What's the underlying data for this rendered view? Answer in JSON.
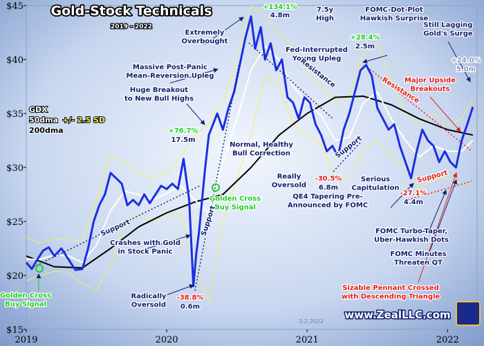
{
  "chart_data": {
    "type": "line",
    "title": "Gold-Stock Technicals",
    "subtitle": "2019 - 2022",
    "xlim": [
      2019,
      2022.21
    ],
    "xticks": [
      2019,
      2020,
      2021,
      2022
    ],
    "ylim": [
      15,
      45
    ],
    "yticks": [
      {
        "value": 15,
        "label": "$15"
      },
      {
        "value": 20,
        "label": "$20"
      },
      {
        "value": 25,
        "label": "$25"
      },
      {
        "value": 30,
        "label": "$30"
      },
      {
        "value": 35,
        "label": "$35"
      },
      {
        "value": 40,
        "label": "$40"
      },
      {
        "value": 45,
        "label": "$45"
      }
    ],
    "series": [
      {
        "name": "GDX",
        "color": "#1a2ee0",
        "x": [
          2019.0,
          2019.04,
          2019.08,
          2019.12,
          2019.16,
          2019.2,
          2019.25,
          2019.3,
          2019.35,
          2019.4,
          2019.44,
          2019.48,
          2019.52,
          2019.56,
          2019.6,
          2019.64,
          2019.68,
          2019.72,
          2019.76,
          2019.8,
          2019.84,
          2019.88,
          2019.92,
          2019.96,
          2020.0,
          2020.04,
          2020.08,
          2020.12,
          2020.16,
          2020.19,
          2020.21,
          2020.23,
          2020.27,
          2020.3,
          2020.33,
          2020.36,
          2020.4,
          2020.44,
          2020.48,
          2020.52,
          2020.56,
          2020.6,
          2020.63,
          2020.67,
          2020.7,
          2020.74,
          2020.78,
          2020.82,
          2020.86,
          2020.9,
          2020.94,
          2020.98,
          2021.02,
          2021.06,
          2021.1,
          2021.14,
          2021.18,
          2021.22,
          2021.26,
          2021.3,
          2021.34,
          2021.38,
          2021.42,
          2021.46,
          2021.5,
          2021.54,
          2021.58,
          2021.62,
          2021.66,
          2021.7,
          2021.74,
          2021.78,
          2021.82,
          2021.86,
          2021.9,
          2021.94,
          2021.98,
          2022.02,
          2022.06,
          2022.1,
          2022.14,
          2022.18
        ],
        "values": [
          21.2,
          20.6,
          21.5,
          22.3,
          22.6,
          21.8,
          22.5,
          21.5,
          20.5,
          20.6,
          22.5,
          25,
          26.5,
          27.5,
          29.5,
          29,
          28.5,
          26.5,
          27,
          26.5,
          27.5,
          26.7,
          27.5,
          28.3,
          28,
          28.5,
          28,
          30.8,
          27,
          19.0,
          22,
          24,
          29.5,
          33,
          34,
          35,
          33.5,
          35.5,
          37,
          39.5,
          42,
          44,
          41,
          43,
          40,
          41.5,
          39,
          40,
          36.5,
          36,
          34.5,
          36.5,
          36,
          34,
          33,
          31.5,
          32,
          31,
          33.5,
          35,
          37,
          39,
          39.5,
          38.5,
          35.5,
          34.5,
          33.5,
          34,
          32,
          30.5,
          29,
          31.5,
          33.5,
          32.5,
          32,
          30.5,
          31.5,
          30.5,
          30,
          32.5,
          34,
          35.6
        ]
      },
      {
        "name": "50dma",
        "color": "#ffffff",
        "x": [
          2019.0,
          2019.1,
          2019.2,
          2019.3,
          2019.4,
          2019.5,
          2019.6,
          2019.7,
          2019.8,
          2019.9,
          2020.0,
          2020.1,
          2020.2,
          2020.3,
          2020.4,
          2020.5,
          2020.6,
          2020.7,
          2020.8,
          2020.9,
          2021.0,
          2021.1,
          2021.2,
          2021.3,
          2021.4,
          2021.5,
          2021.6,
          2021.7,
          2021.8,
          2021.9,
          2022.0,
          2022.1,
          2022.18
        ],
        "values": [
          21.5,
          21.5,
          21.9,
          21.8,
          21.2,
          22.8,
          26,
          27.8,
          27.5,
          27,
          27.6,
          28.3,
          27,
          25.8,
          30.5,
          34.5,
          39,
          41.2,
          40,
          37.5,
          36,
          34.8,
          32.5,
          32.8,
          36,
          37,
          34.5,
          32.5,
          31,
          32,
          31.5,
          31.5,
          32.5
        ]
      },
      {
        "name": "200dma",
        "color": "#000000",
        "x": [
          2019.0,
          2019.2,
          2019.4,
          2019.6,
          2019.8,
          2020.0,
          2020.2,
          2020.4,
          2020.6,
          2020.8,
          2021.0,
          2021.2,
          2021.4,
          2021.6,
          2021.8,
          2022.0,
          2022.18
        ],
        "values": [
          21.8,
          20.8,
          20.7,
          22.5,
          24.5,
          25.8,
          26.8,
          27.5,
          30,
          33,
          35,
          36.5,
          36.6,
          35.8,
          34.5,
          33.5,
          33
        ]
      }
    ],
    "bands": {
      "name": "+/- 2.5 SD",
      "color": "#f0f060",
      "x": [
        2019.0,
        2019.1,
        2019.2,
        2019.3,
        2019.4,
        2019.5,
        2019.6,
        2019.7,
        2019.8,
        2019.9,
        2020.0,
        2020.1,
        2020.2,
        2020.3,
        2020.4,
        2020.5,
        2020.6,
        2020.7,
        2020.8,
        2020.9,
        2021.0,
        2021.1,
        2021.2,
        2021.3,
        2021.4,
        2021.5,
        2021.6,
        2021.7,
        2021.8,
        2021.9,
        2022.0,
        2022.1,
        2022.18
      ],
      "upper": [
        23.5,
        23,
        23.4,
        23.3,
        23.2,
        27,
        31,
        30.5,
        29.5,
        29,
        29.5,
        31,
        33,
        34,
        36,
        40,
        45,
        44,
        42.5,
        41,
        39,
        37.5,
        36,
        36.5,
        40.5,
        41.5,
        38,
        35,
        34,
        35,
        34,
        34.5,
        36.5
      ],
      "lower": [
        19.5,
        20,
        20.4,
        20.3,
        19.2,
        18.6,
        21,
        25.1,
        25.5,
        25,
        25.7,
        25.6,
        21,
        17.6,
        25,
        29,
        33,
        38.4,
        37.5,
        34,
        33,
        32.1,
        29,
        29.1,
        31.5,
        32.5,
        31,
        30,
        28,
        29,
        29,
        28.5,
        28.5
      ]
    },
    "annotations": [
      {
        "lines": [
          "Extremely",
          "Overbought"
        ]
      },
      {
        "lines": [
          "+134.1%"
        ],
        "color": "#22d022"
      },
      {
        "lines": [
          "4.8m"
        ]
      },
      {
        "lines": [
          "7.5y",
          "High"
        ]
      },
      {
        "lines": [
          "FOMC-Dot-Plot",
          "Hawkish Surprise"
        ]
      },
      {
        "lines": [
          "Fed-Interrupted",
          "Young Upleg"
        ]
      },
      {
        "lines": [
          "+28.4%"
        ],
        "color": "#22d022"
      },
      {
        "lines": [
          "2.5m"
        ]
      },
      {
        "lines": [
          "Still Lagging",
          "Gold's Surge"
        ]
      },
      {
        "lines": [
          "Massive Post-Panic",
          "Mean-Reversion Upleg"
        ]
      },
      {
        "lines": [
          "Huge Breakout",
          "to New Bull Highs"
        ]
      },
      {
        "lines": [
          "Major Upside",
          "Breakouts"
        ],
        "color": "#e0201a"
      },
      {
        "lines": [
          "+24.0%"
        ],
        "color": "#8a9ab8"
      },
      {
        "lines": [
          "5.0m"
        ],
        "color": "#8a9ab8"
      },
      {
        "lines": [
          "Resistance"
        ]
      },
      {
        "lines": [
          "Resistance"
        ],
        "color": "#e0201a"
      },
      {
        "lines": [
          "+76.7%"
        ],
        "color": "#22d022"
      },
      {
        "lines": [
          "17.5m"
        ]
      },
      {
        "lines": [
          "Normal, Healthy",
          "Bull Correction"
        ]
      },
      {
        "lines": [
          "Support"
        ]
      },
      {
        "lines": [
          "Really",
          "Oversold"
        ]
      },
      {
        "lines": [
          "-30.5%"
        ],
        "color": "#e0201a"
      },
      {
        "lines": [
          "6.8m"
        ]
      },
      {
        "lines": [
          "Serious",
          "Capitulation"
        ]
      },
      {
        "lines": [
          "QE4 Tapering Pre-",
          "Announced by FOMC"
        ]
      },
      {
        "lines": [
          "-27.1%"
        ],
        "color": "#e0201a"
      },
      {
        "lines": [
          "4.4m"
        ]
      },
      {
        "lines": [
          "Support"
        ],
        "color": "#e0201a"
      },
      {
        "lines": [
          "Golden Cross",
          "Buy Signal"
        ],
        "color": "#22d022"
      },
      {
        "lines": [
          "Support"
        ]
      },
      {
        "lines": [
          "Support"
        ]
      },
      {
        "lines": [
          "Crashes with Gold",
          "in Stock Panic"
        ]
      },
      {
        "lines": [
          "FOMC Turbo-Taper,",
          "Uber-Hawkish Dots"
        ]
      },
      {
        "lines": [
          "FOMC Minutes",
          "Threaten QT"
        ]
      },
      {
        "lines": [
          "Sizable Pennant Crossed",
          "with Descending Triangle"
        ],
        "color": "#e0201a"
      },
      {
        "lines": [
          "Golden Cross",
          "Buy Signal"
        ],
        "color": "#22d022"
      },
      {
        "lines": [
          "Radically",
          "Oversold"
        ]
      },
      {
        "lines": [
          "-38.8%"
        ],
        "color": "#e0201a"
      },
      {
        "lines": [
          "0.6m"
        ]
      },
      {
        "lines": [
          "3.2.2022"
        ]
      },
      {
        "lines": [
          "www.ZealLLC.com"
        ]
      }
    ]
  }
}
